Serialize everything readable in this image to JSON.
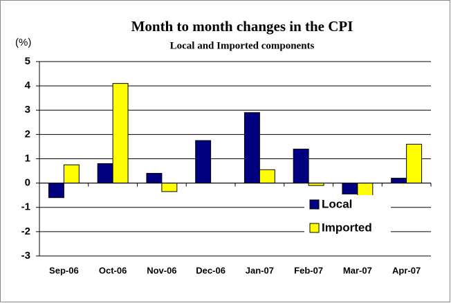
{
  "chart_data": {
    "type": "bar",
    "title": "Month to month changes in the CPI",
    "subtitle": "Local and Imported components",
    "y_label": "(%)",
    "categories": [
      "Sep-06",
      "Oct-06",
      "Nov-06",
      "Dec-06",
      "Jan-07",
      "Feb-07",
      "Mar-07",
      "Apr-07"
    ],
    "series": [
      {
        "name": "Local",
        "color": "#000080",
        "values": [
          -0.6,
          0.8,
          0.4,
          1.75,
          2.9,
          1.4,
          -0.45,
          0.2
        ]
      },
      {
        "name": "Imported",
        "color": "#ffff00",
        "values": [
          0.75,
          4.1,
          -0.35,
          0,
          0.55,
          -0.1,
          -0.6,
          1.6
        ]
      }
    ],
    "ylim": [
      -3,
      5
    ],
    "yticks": [
      -3,
      -2,
      -1,
      0,
      1,
      2,
      3,
      4,
      5
    ],
    "grid": true,
    "legend": "lower right"
  }
}
